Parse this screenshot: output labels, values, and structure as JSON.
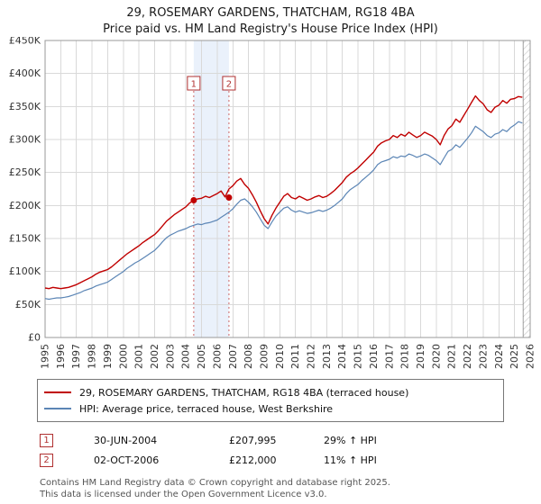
{
  "header": {
    "title": "29, ROSEMARY GARDENS, THATCHAM, RG18 4BA",
    "subtitle": "Price paid vs. HM Land Registry's House Price Index (HPI)"
  },
  "chart_data": {
    "type": "line",
    "title": "29, ROSEMARY GARDENS, THATCHAM, RG18 4BA — Price paid vs. HPI",
    "xlim": [
      1995,
      2026
    ],
    "ylim": [
      0,
      450000
    ],
    "x_start": 1995,
    "x_step": 0.25,
    "grid": true,
    "y_tick_labels": [
      "£0",
      "£50K",
      "£100K",
      "£150K",
      "£200K",
      "£250K",
      "£300K",
      "£350K",
      "£400K",
      "£450K"
    ],
    "x_tick_labels": [
      "1995",
      "1996",
      "1997",
      "1998",
      "1999",
      "2000",
      "2001",
      "2002",
      "2003",
      "2004",
      "2005",
      "2006",
      "2007",
      "2008",
      "2009",
      "2010",
      "2011",
      "2012",
      "2013",
      "2014",
      "2015",
      "2016",
      "2017",
      "2018",
      "2019",
      "2020",
      "2021",
      "2022",
      "2023",
      "2024",
      "2025",
      "2026"
    ],
    "series": [
      {
        "name": "29, ROSEMARY GARDENS, THATCHAM, RG18 4BA (terraced house)",
        "color": "#c00000",
        "values_k": [
          75,
          74,
          76,
          75,
          74,
          75,
          76,
          78,
          80,
          83,
          86,
          89,
          92,
          96,
          99,
          101,
          103,
          107,
          112,
          117,
          122,
          127,
          131,
          135,
          139,
          144,
          148,
          152,
          156,
          162,
          169,
          176,
          181,
          186,
          190,
          194,
          198,
          204,
          208,
          210,
          211,
          214,
          212,
          215,
          218,
          222,
          213,
          225,
          230,
          237,
          241,
          232,
          226,
          216,
          205,
          192,
          180,
          172,
          185,
          196,
          205,
          214,
          218,
          212,
          210,
          214,
          211,
          208,
          210,
          213,
          215,
          212,
          214,
          218,
          223,
          229,
          235,
          243,
          248,
          252,
          257,
          263,
          269,
          275,
          281,
          290,
          295,
          298,
          300,
          306,
          303,
          308,
          305,
          311,
          307,
          303,
          306,
          311,
          308,
          305,
          300,
          292,
          306,
          316,
          321,
          331,
          326,
          336,
          346,
          356,
          366,
          359,
          354,
          345,
          341,
          349,
          352,
          359,
          355,
          361,
          362,
          365,
          364
        ]
      },
      {
        "name": "HPI: Average price, terraced house, West Berkshire",
        "color": "#5b85b5",
        "values_k": [
          59,
          58,
          59,
          60,
          60,
          61,
          62,
          64,
          66,
          68,
          71,
          73,
          75,
          78,
          80,
          82,
          84,
          88,
          92,
          96,
          100,
          105,
          109,
          113,
          116,
          120,
          124,
          128,
          132,
          138,
          145,
          151,
          155,
          158,
          161,
          163,
          165,
          168,
          170,
          172,
          171,
          173,
          174,
          176,
          178,
          182,
          186,
          190,
          195,
          202,
          208,
          210,
          205,
          198,
          190,
          180,
          170,
          165,
          175,
          184,
          190,
          196,
          198,
          193,
          190,
          192,
          190,
          188,
          189,
          191,
          193,
          191,
          193,
          196,
          200,
          205,
          210,
          218,
          224,
          228,
          232,
          238,
          243,
          248,
          254,
          262,
          266,
          268,
          270,
          274,
          272,
          275,
          274,
          278,
          276,
          273,
          275,
          278,
          276,
          272,
          268,
          262,
          272,
          282,
          285,
          292,
          288,
          295,
          302,
          310,
          320,
          316,
          312,
          306,
          303,
          308,
          310,
          315,
          312,
          318,
          322,
          327,
          325
        ]
      }
    ],
    "sales": [
      {
        "label": "1",
        "x": 2004.5,
        "price_k": 207.995
      },
      {
        "label": "2",
        "x": 2006.75,
        "price_k": 212.0
      }
    ],
    "band": {
      "from": 2004.5,
      "to": 2006.75,
      "color": "#eaf1fb"
    },
    "hatch_from": 2025.55,
    "colors": {
      "grid": "#d9d9d9",
      "frame": "#999999",
      "sale_line": "#cc6666",
      "sale_box": "#b03030",
      "hatch": "#aaaaaa"
    }
  },
  "legend": {
    "items": [
      {
        "label": "29, ROSEMARY GARDENS, THATCHAM, RG18 4BA (terraced house)"
      },
      {
        "label": "HPI: Average price, terraced house, West Berkshire"
      }
    ]
  },
  "sales_table": [
    {
      "num": "1",
      "date": "30-JUN-2004",
      "price": "£207,995",
      "hpi": "29% ↑ HPI"
    },
    {
      "num": "2",
      "date": "02-OCT-2006",
      "price": "£212,000",
      "hpi": "11% ↑ HPI"
    }
  ],
  "footer": {
    "line1": "Contains HM Land Registry data © Crown copyright and database right 2025.",
    "line2": "This data is licensed under the Open Government Licence v3.0."
  }
}
